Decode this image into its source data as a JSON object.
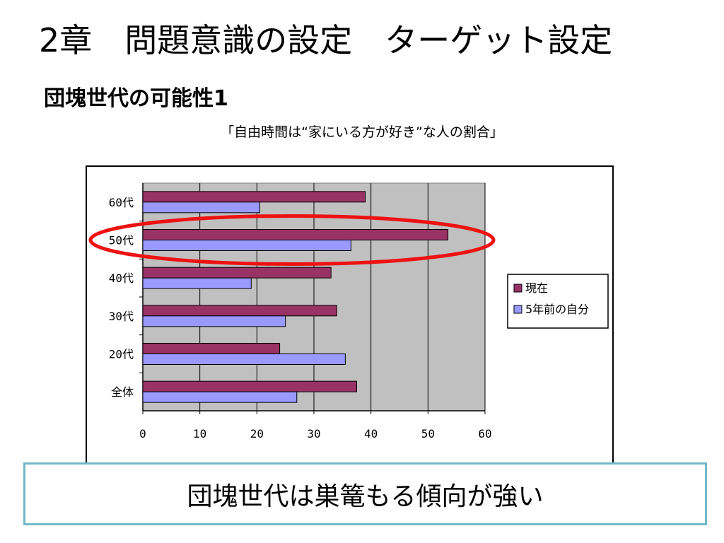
{
  "slide": {
    "title": "2章　問題意識の設定　ターゲット設定",
    "subtitle": "団塊世代の可能性1",
    "caption": "「自由時間は“家にいる方が好き”な人の割合」",
    "conclusion": "団塊世代は巣篭もる傾向が強い"
  },
  "colors": {
    "current": "#993366",
    "past": "#9999ff",
    "plot_background": "#c0c0c0",
    "highlight_ellipse": "#ee1111",
    "callout_border": "#6fb9c9"
  },
  "chart_data": {
    "type": "bar",
    "orientation": "horizontal",
    "title": "",
    "xlabel": "",
    "ylabel": "",
    "categories": [
      "60代",
      "50代",
      "40代",
      "30代",
      "20代",
      "全体"
    ],
    "series": [
      {
        "name": "現在",
        "values": [
          39,
          53.5,
          33,
          34,
          24,
          37.5
        ]
      },
      {
        "name": "5年前の自分",
        "values": [
          20.5,
          36.5,
          19,
          25,
          35.5,
          27
        ]
      }
    ],
    "xlim": [
      0,
      60
    ],
    "xticks": [
      "0",
      "10",
      "20",
      "30",
      "40",
      "50",
      "60"
    ],
    "grid": "vertical",
    "legend_position": "right",
    "highlighted_category": "50代"
  }
}
